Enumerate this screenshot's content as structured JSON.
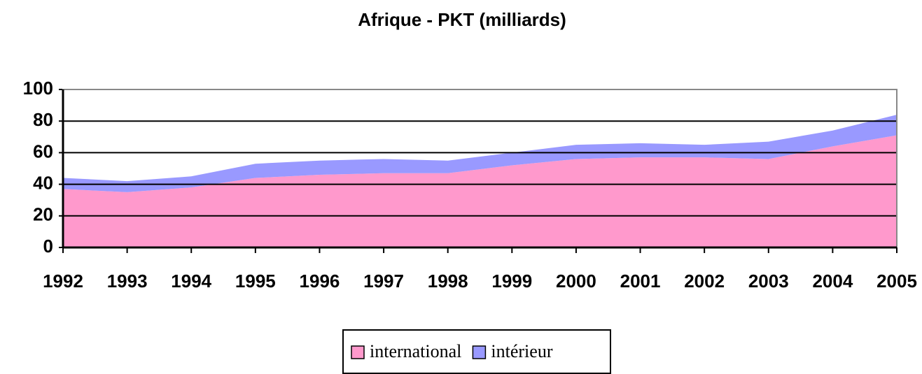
{
  "chart_data": {
    "type": "stacked_area",
    "title": "Afrique - PKT (milliards)",
    "x": [
      1992,
      1993,
      1994,
      1995,
      1996,
      1997,
      1998,
      1999,
      2000,
      2001,
      2002,
      2003,
      2004,
      2005
    ],
    "xlim": [
      1992,
      2005
    ],
    "series": [
      {
        "name": "international",
        "color": "#ff99cc",
        "values": [
          37,
          35,
          38,
          44,
          46,
          47,
          47,
          52,
          56,
          57,
          57,
          56,
          64,
          71
        ]
      },
      {
        "name": "intérieur",
        "color": "#9999ff",
        "values": [
          7,
          7,
          7,
          9,
          9,
          9,
          8,
          8,
          9,
          9,
          8,
          11,
          10,
          13
        ]
      }
    ],
    "ylim": [
      0,
      100
    ],
    "yticks": [
      0,
      20,
      40,
      60,
      80,
      100
    ],
    "grid": true,
    "legend": "bottom"
  }
}
